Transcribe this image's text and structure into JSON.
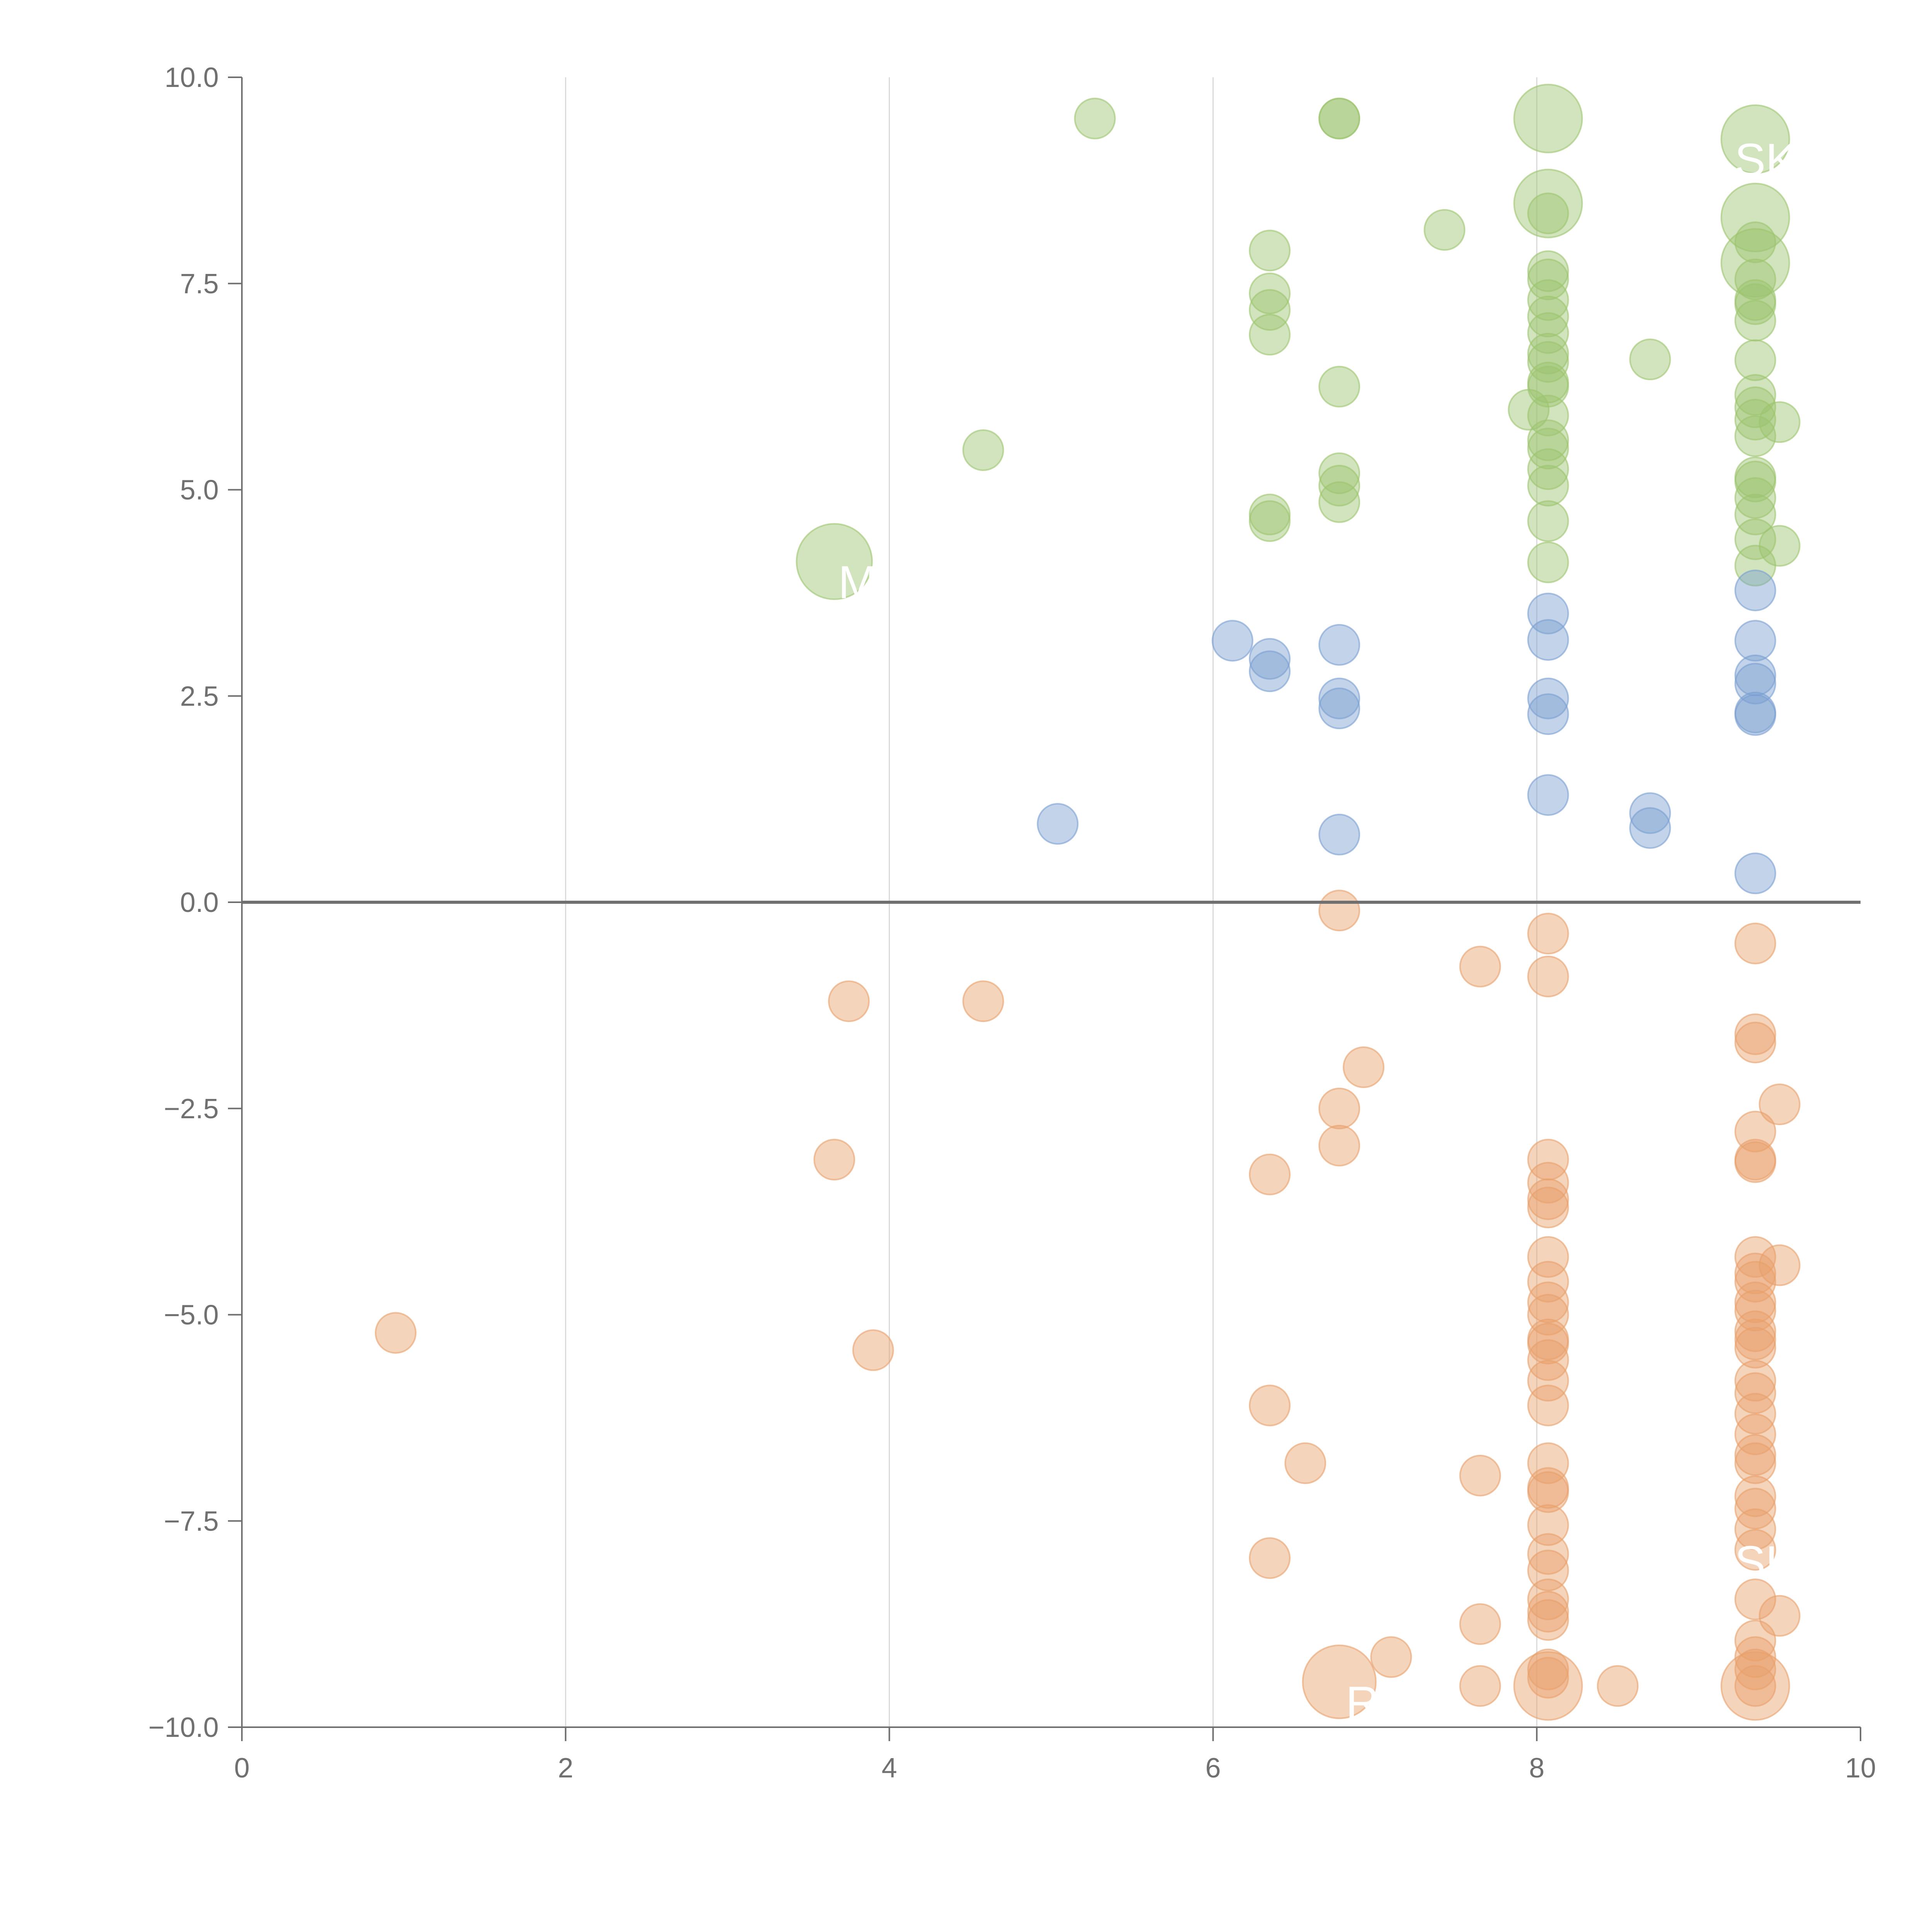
{
  "chart_data": {
    "type": "scatter",
    "title": "",
    "xlabel": "",
    "ylabel": "",
    "xlim": [
      0,
      10
    ],
    "ylim": [
      -10,
      10
    ],
    "x_ticks": [
      "0",
      "2",
      "4",
      "6",
      "8",
      "10"
    ],
    "y_ticks": [
      "−10.0",
      "−7.5",
      "−5.0",
      "−2.5",
      "0.0",
      "2.5",
      "5.0",
      "7.5",
      "10.0"
    ],
    "x_tick_values": [
      0,
      2,
      4,
      6,
      8,
      10
    ],
    "y_tick_values": [
      -10,
      -7.5,
      -5,
      -2.5,
      0,
      2.5,
      5,
      7.5,
      10
    ],
    "grid_x": [
      2,
      4,
      6,
      8
    ],
    "zero_line": 0,
    "colors": {
      "green": "#9cc46e",
      "blue": "#7a9fd1",
      "orange": "#e8a06a",
      "axis": "#707070",
      "grid": "#d9d9d9"
    },
    "series": [
      {
        "name": "green",
        "color": "#9cc46e",
        "points": [
          [
            5.27,
            9.5,
            1
          ],
          [
            6.78,
            9.5,
            1
          ],
          [
            6.78,
            9.5,
            1
          ],
          [
            7.43,
            8.15,
            1
          ],
          [
            6.35,
            7.9,
            1
          ],
          [
            6.35,
            7.38,
            1
          ],
          [
            6.35,
            7.18,
            1
          ],
          [
            6.35,
            6.88,
            1
          ],
          [
            6.78,
            6.25,
            1
          ],
          [
            4.58,
            5.48,
            1
          ],
          [
            6.78,
            5.2,
            1
          ],
          [
            6.78,
            5.05,
            1
          ],
          [
            6.78,
            4.85,
            1
          ],
          [
            6.35,
            4.7,
            1
          ],
          [
            6.35,
            4.62,
            1
          ],
          [
            3.66,
            4.13,
            3.2
          ],
          [
            8.07,
            9.5,
            2.6
          ],
          [
            8.07,
            8.47,
            2.6
          ],
          [
            8.07,
            8.35,
            1
          ],
          [
            8.07,
            7.65,
            1
          ],
          [
            8.07,
            7.55,
            1
          ],
          [
            8.07,
            7.3,
            1
          ],
          [
            8.07,
            7.1,
            1
          ],
          [
            8.07,
            6.9,
            1
          ],
          [
            8.07,
            6.65,
            1
          ],
          [
            8.07,
            6.55,
            1
          ],
          [
            8.07,
            6.3,
            1
          ],
          [
            8.07,
            6.25,
            1
          ],
          [
            7.95,
            5.97,
            1
          ],
          [
            8.07,
            5.9,
            1
          ],
          [
            8.07,
            5.6,
            1
          ],
          [
            8.07,
            5.5,
            1
          ],
          [
            8.07,
            5.25,
            1
          ],
          [
            8.07,
            5.05,
            1
          ],
          [
            8.07,
            4.62,
            1
          ],
          [
            8.07,
            4.12,
            1
          ],
          [
            8.7,
            6.58,
            1
          ],
          [
            9.35,
            9.25,
            2.6
          ],
          [
            9.35,
            8.3,
            2.6
          ],
          [
            9.35,
            8.0,
            1
          ],
          [
            9.35,
            7.75,
            2.6
          ],
          [
            9.35,
            7.55,
            1
          ],
          [
            9.35,
            7.3,
            1
          ],
          [
            9.35,
            7.25,
            1
          ],
          [
            9.35,
            7.05,
            1
          ],
          [
            9.35,
            6.57,
            1
          ],
          [
            9.35,
            6.15,
            1
          ],
          [
            9.35,
            6.0,
            1
          ],
          [
            9.35,
            5.85,
            1
          ],
          [
            9.35,
            5.65,
            1
          ],
          [
            9.5,
            5.82,
            1
          ],
          [
            9.35,
            5.15,
            1
          ],
          [
            9.35,
            5.1,
            1
          ],
          [
            9.35,
            4.9,
            1
          ],
          [
            9.35,
            4.7,
            1
          ],
          [
            9.35,
            4.4,
            1
          ],
          [
            9.5,
            4.32,
            1
          ],
          [
            9.35,
            4.08,
            1
          ]
        ]
      },
      {
        "name": "blue",
        "color": "#7a9fd1",
        "points": [
          [
            5.04,
            0.95,
            1
          ],
          [
            6.12,
            3.17,
            1
          ],
          [
            6.35,
            2.95,
            1
          ],
          [
            6.35,
            2.8,
            1
          ],
          [
            6.78,
            3.12,
            1
          ],
          [
            6.78,
            2.47,
            1
          ],
          [
            6.78,
            2.35,
            1
          ],
          [
            6.78,
            0.82,
            1
          ],
          [
            8.07,
            3.5,
            1
          ],
          [
            8.07,
            3.18,
            1
          ],
          [
            8.07,
            2.47,
            1
          ],
          [
            8.07,
            2.28,
            1
          ],
          [
            8.07,
            1.3,
            1
          ],
          [
            8.7,
            1.08,
            1
          ],
          [
            8.7,
            0.9,
            1
          ],
          [
            9.35,
            3.78,
            1
          ],
          [
            9.35,
            3.17,
            1
          ],
          [
            9.35,
            2.75,
            1
          ],
          [
            9.35,
            2.65,
            1
          ],
          [
            9.35,
            2.3,
            1
          ],
          [
            9.35,
            2.27,
            1
          ],
          [
            9.35,
            0.35,
            1
          ]
        ]
      },
      {
        "name": "orange",
        "color": "#e8a06a",
        "points": [
          [
            0.95,
            -5.22,
            1
          ],
          [
            3.75,
            -1.2,
            1
          ],
          [
            4.58,
            -1.2,
            1
          ],
          [
            3.66,
            -3.12,
            1
          ],
          [
            3.9,
            -5.43,
            1
          ],
          [
            6.78,
            -0.1,
            1
          ],
          [
            6.35,
            -3.3,
            1
          ],
          [
            6.78,
            -2.5,
            1
          ],
          [
            6.78,
            -2.95,
            1
          ],
          [
            6.93,
            -2.0,
            1
          ],
          [
            6.35,
            -6.1,
            1
          ],
          [
            6.57,
            -6.8,
            1
          ],
          [
            6.35,
            -7.95,
            1
          ],
          [
            6.78,
            -9.45,
            3.0
          ],
          [
            7.1,
            -9.15,
            1
          ],
          [
            7.65,
            -0.78,
            1
          ],
          [
            7.65,
            -6.95,
            1
          ],
          [
            7.65,
            -8.75,
            1
          ],
          [
            7.65,
            -9.5,
            1
          ],
          [
            8.07,
            -0.38,
            1
          ],
          [
            8.07,
            -0.9,
            1
          ],
          [
            8.07,
            -3.12,
            1
          ],
          [
            8.07,
            -3.4,
            1
          ],
          [
            8.07,
            -3.6,
            1
          ],
          [
            8.07,
            -3.7,
            1
          ],
          [
            8.07,
            -4.3,
            1
          ],
          [
            8.07,
            -4.6,
            1
          ],
          [
            8.07,
            -4.85,
            1
          ],
          [
            8.07,
            -5.0,
            1
          ],
          [
            8.07,
            -5.3,
            1
          ],
          [
            8.07,
            -5.35,
            1
          ],
          [
            8.07,
            -5.55,
            1
          ],
          [
            8.07,
            -5.8,
            1
          ],
          [
            8.07,
            -6.1,
            1
          ],
          [
            8.07,
            -6.8,
            1
          ],
          [
            8.07,
            -7.1,
            1
          ],
          [
            8.07,
            -7.15,
            1
          ],
          [
            8.07,
            -7.55,
            1
          ],
          [
            8.07,
            -7.9,
            1
          ],
          [
            8.07,
            -8.1,
            1
          ],
          [
            8.07,
            -8.45,
            1
          ],
          [
            8.07,
            -8.6,
            1
          ],
          [
            8.07,
            -8.7,
            1
          ],
          [
            8.07,
            -9.3,
            1
          ],
          [
            8.07,
            -9.4,
            1
          ],
          [
            8.07,
            -9.5,
            2.6
          ],
          [
            8.5,
            -9.5,
            1
          ],
          [
            9.35,
            -0.5,
            1
          ],
          [
            9.35,
            -1.6,
            1
          ],
          [
            9.35,
            -1.7,
            1
          ],
          [
            9.5,
            -2.45,
            1
          ],
          [
            9.35,
            -2.78,
            1
          ],
          [
            9.35,
            -3.12,
            1
          ],
          [
            9.35,
            -3.15,
            1
          ],
          [
            9.35,
            -4.3,
            1
          ],
          [
            9.35,
            -4.5,
            1
          ],
          [
            9.35,
            -4.6,
            1
          ],
          [
            9.5,
            -4.4,
            1
          ],
          [
            9.35,
            -4.85,
            1
          ],
          [
            9.35,
            -4.95,
            1
          ],
          [
            9.35,
            -5.2,
            1
          ],
          [
            9.35,
            -5.3,
            1
          ],
          [
            9.35,
            -5.4,
            1
          ],
          [
            9.35,
            -5.8,
            1
          ],
          [
            9.35,
            -5.95,
            1
          ],
          [
            9.35,
            -6.2,
            1
          ],
          [
            9.35,
            -6.45,
            1
          ],
          [
            9.35,
            -6.7,
            1
          ],
          [
            9.35,
            -6.8,
            1
          ],
          [
            9.35,
            -7.2,
            1
          ],
          [
            9.35,
            -7.35,
            1
          ],
          [
            9.35,
            -7.6,
            1
          ],
          [
            9.35,
            -7.85,
            1
          ],
          [
            9.35,
            -8.45,
            1
          ],
          [
            9.5,
            -8.65,
            1
          ],
          [
            9.35,
            -8.95,
            1
          ],
          [
            9.35,
            -9.15,
            1
          ],
          [
            9.35,
            -9.3,
            1
          ],
          [
            9.35,
            -9.5,
            2.6
          ],
          [
            9.35,
            -9.5,
            1
          ]
        ]
      }
    ],
    "annotations": [
      {
        "text": "SKL",
        "x": 9.35,
        "y": 9.25,
        "color": "green"
      },
      {
        "text": "M",
        "x": 3.66,
        "y": 4.13,
        "color": "green"
      },
      {
        "text": "SKL",
        "x": 9.35,
        "y": -7.75,
        "color": "orange"
      },
      {
        "text": "R",
        "x": 6.78,
        "y": -9.45,
        "color": "orange"
      }
    ]
  }
}
